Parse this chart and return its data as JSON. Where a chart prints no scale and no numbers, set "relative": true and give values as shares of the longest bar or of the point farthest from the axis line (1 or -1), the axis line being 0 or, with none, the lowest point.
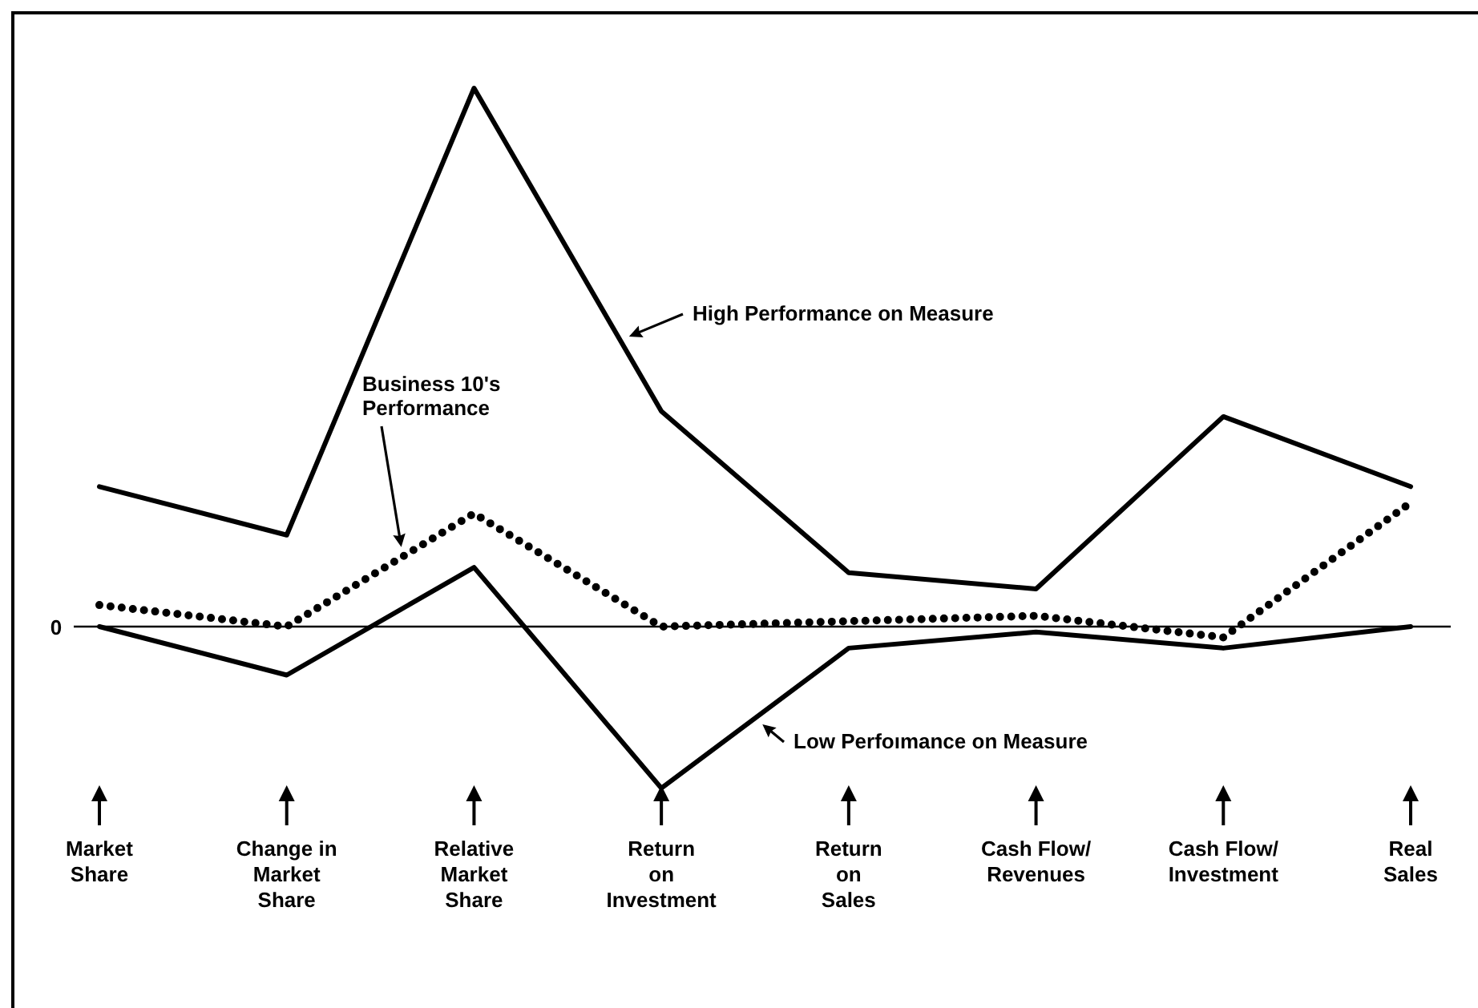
{
  "chart_data": {
    "type": "line",
    "relative": true,
    "categories": [
      "Market\nShare",
      "Change in\nMarket\nShare",
      "Relative\nMarket\nShare",
      "Return\non\nInvestment",
      "Return\non\nSales",
      "Cash Flow/\nRevenues",
      "Cash Flow/\nInvestment",
      "Real\nSales"
    ],
    "series": [
      {
        "color": "#000000",
        "line_style": "solid",
        "values": [
          0.26,
          0.17,
          1,
          0.4,
          0.1,
          0.07,
          0.39,
          0.26
        ]
      },
      {
        "color": "#000000",
        "line_style": "dotted",
        "values": [
          0.04,
          0,
          0.21,
          0,
          0.01,
          0.02,
          -0.02,
          0.23
        ]
      },
      {
        "color": "#000000",
        "line_style": "solid",
        "values": [
          0,
          -0.09,
          0.11,
          -0.3,
          -0.04,
          -0.01,
          -0.04,
          0
        ]
      }
    ],
    "annotations": [
      "High Performance on Measure",
      "Business 10's\nPerformance",
      "Low Perfoımance on Measure"
    ],
    "ref_lines": [
      {
        "axis": "y",
        "value": 0,
        "label": "0"
      }
    ],
    "grid": false,
    "marker": "none"
  }
}
